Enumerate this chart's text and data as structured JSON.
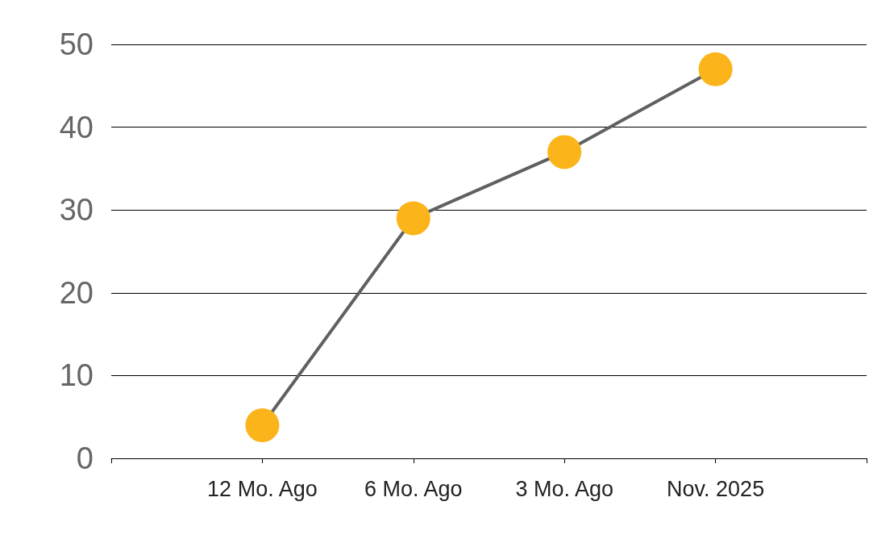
{
  "chart_data": {
    "type": "line",
    "categories": [
      null,
      "12 Mo. Ago",
      "6 Mo. Ago",
      "3 Mo. Ago",
      "Nov. 2025",
      null
    ],
    "series": [
      {
        "color": "#fbb41a",
        "values": [
          null,
          4,
          29,
          37,
          47,
          null
        ]
      }
    ],
    "ylim": [
      0,
      50
    ],
    "yticks": [
      0,
      10,
      20,
      30,
      40,
      50
    ],
    "grid": "y",
    "marker": "circle",
    "line_style": "solid"
  }
}
